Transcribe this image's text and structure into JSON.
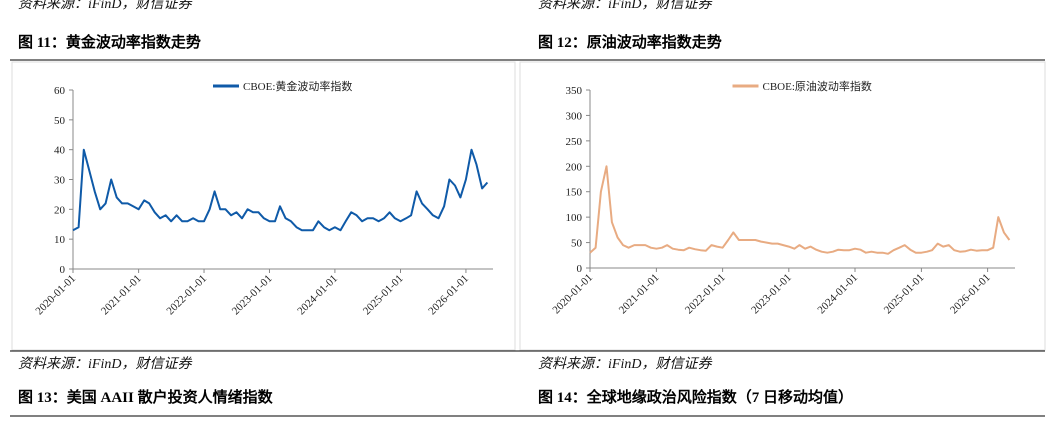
{
  "captions": {
    "top_sources": [
      "资料来源：iFinD，财信证券",
      "资料来源：iFinD，财信证券"
    ],
    "top_titles": [
      "图 11：黄金波动率指数走势",
      "图 12：原油波动率指数走势"
    ],
    "bottom_sources": [
      "资料来源：iFinD，财信证券",
      "资料来源：iFinD，财信证券"
    ],
    "bottom_titles": [
      "图 13：美国 AAII 散户投资人情绪指数",
      "图 14：全球地缘政治风险指数（7 日移动均值）"
    ]
  },
  "chart_data": [
    {
      "type": "line",
      "x": [
        "2020-01-01",
        "2020-02-01",
        "2020-03-01",
        "2020-04-01",
        "2020-05-01",
        "2020-06-01",
        "2020-07-01",
        "2020-08-01",
        "2020-09-01",
        "2020-10-01",
        "2020-11-01",
        "2020-12-01",
        "2021-01-01",
        "2021-02-01",
        "2021-03-01",
        "2021-04-01",
        "2021-05-01",
        "2021-06-01",
        "2021-07-01",
        "2021-08-01",
        "2021-09-01",
        "2021-10-01",
        "2021-11-01",
        "2021-12-01",
        "2022-01-01",
        "2022-02-01",
        "2022-03-01",
        "2022-04-01",
        "2022-05-01",
        "2022-06-01",
        "2022-07-01",
        "2022-08-01",
        "2022-09-01",
        "2022-10-01",
        "2022-11-01",
        "2022-12-01",
        "2023-01-01",
        "2023-02-01",
        "2023-03-01",
        "2023-04-01",
        "2023-05-01",
        "2023-06-01",
        "2023-07-01",
        "2023-08-01",
        "2023-09-01",
        "2023-10-01",
        "2023-11-01",
        "2023-12-01",
        "2024-01-01",
        "2024-02-01",
        "2024-03-01",
        "2024-04-01",
        "2024-05-01",
        "2024-06-01",
        "2024-07-01",
        "2024-08-01",
        "2024-09-01",
        "2024-10-01",
        "2024-11-01",
        "2024-12-01",
        "2025-01-01",
        "2025-02-01",
        "2025-03-01",
        "2025-04-01",
        "2025-05-01",
        "2025-06-01",
        "2025-07-01",
        "2025-08-01",
        "2025-09-01",
        "2025-10-01",
        "2025-11-01",
        "2025-12-01",
        "2026-01-01",
        "2026-02-01",
        "2026-03-01",
        "2026-04-01",
        "2026-05-01"
      ],
      "series": [
        {
          "name": "CBOE:黄金波动率指数",
          "color": "#0f5aa8",
          "values": [
            13,
            14,
            40,
            33,
            26,
            20,
            22,
            30,
            24,
            22,
            22,
            21,
            20,
            23,
            22,
            19,
            17,
            18,
            16,
            18,
            16,
            16,
            17,
            16,
            16,
            20,
            26,
            20,
            20,
            18,
            19,
            17,
            20,
            19,
            19,
            17,
            16,
            16,
            21,
            17,
            16,
            14,
            13,
            13,
            13,
            16,
            14,
            13,
            14,
            13,
            16,
            19,
            18,
            16,
            17,
            17,
            16,
            17,
            19,
            17,
            16,
            17,
            18,
            26,
            22,
            20,
            18,
            17,
            21,
            30,
            28,
            24,
            30,
            40,
            35,
            27,
            29
          ]
        }
      ],
      "xlim": [
        "2020-01-01",
        "2026-06-01"
      ],
      "xticks": [
        "2020-01-01",
        "2021-01-01",
        "2022-01-01",
        "2023-01-01",
        "2024-01-01",
        "2025-01-01",
        "2026-01-01"
      ],
      "ylim": [
        0,
        60
      ],
      "yticks": [
        0,
        10,
        20,
        30,
        40,
        50,
        60
      ],
      "legend": "top"
    },
    {
      "type": "line",
      "x": [
        "2020-01-01",
        "2020-02-01",
        "2020-03-01",
        "2020-04-01",
        "2020-05-01",
        "2020-06-01",
        "2020-07-01",
        "2020-08-01",
        "2020-09-01",
        "2020-10-01",
        "2020-11-01",
        "2020-12-01",
        "2021-01-01",
        "2021-02-01",
        "2021-03-01",
        "2021-04-01",
        "2021-05-01",
        "2021-06-01",
        "2021-07-01",
        "2021-08-01",
        "2021-09-01",
        "2021-10-01",
        "2021-11-01",
        "2021-12-01",
        "2022-01-01",
        "2022-02-01",
        "2022-03-01",
        "2022-04-01",
        "2022-05-01",
        "2022-06-01",
        "2022-07-01",
        "2022-08-01",
        "2022-09-01",
        "2022-10-01",
        "2022-11-01",
        "2022-12-01",
        "2023-01-01",
        "2023-02-01",
        "2023-03-01",
        "2023-04-01",
        "2023-05-01",
        "2023-06-01",
        "2023-07-01",
        "2023-08-01",
        "2023-09-01",
        "2023-10-01",
        "2023-11-01",
        "2023-12-01",
        "2024-01-01",
        "2024-02-01",
        "2024-03-01",
        "2024-04-01",
        "2024-05-01",
        "2024-06-01",
        "2024-07-01",
        "2024-08-01",
        "2024-09-01",
        "2024-10-01",
        "2024-11-01",
        "2024-12-01",
        "2025-01-01",
        "2025-02-01",
        "2025-03-01",
        "2025-04-01",
        "2025-05-01",
        "2025-06-01",
        "2025-07-01",
        "2025-08-01",
        "2025-09-01",
        "2025-10-01",
        "2025-11-01",
        "2025-12-01",
        "2026-01-01",
        "2026-02-01",
        "2026-03-01",
        "2026-04-01",
        "2026-05-01"
      ],
      "series": [
        {
          "name": "CBOE:原油波动率指数",
          "color": "#e8ab82",
          "values": [
            30,
            40,
            150,
            200,
            90,
            60,
            45,
            40,
            45,
            45,
            45,
            40,
            38,
            40,
            45,
            38,
            36,
            35,
            40,
            37,
            35,
            34,
            45,
            42,
            40,
            55,
            70,
            55,
            55,
            55,
            55,
            52,
            50,
            48,
            48,
            45,
            42,
            38,
            45,
            38,
            42,
            36,
            32,
            30,
            32,
            36,
            35,
            35,
            38,
            36,
            30,
            32,
            30,
            30,
            28,
            35,
            40,
            45,
            36,
            30,
            30,
            32,
            35,
            48,
            42,
            45,
            35,
            32,
            33,
            36,
            34,
            35,
            35,
            40,
            100,
            70,
            55
          ]
        }
      ],
      "xlim": [
        "2020-01-01",
        "2026-06-01"
      ],
      "xticks": [
        "2020-01-01",
        "2021-01-01",
        "2022-01-01",
        "2023-01-01",
        "2024-01-01",
        "2025-01-01",
        "2026-01-01"
      ],
      "ylim": [
        0,
        350
      ],
      "yticks": [
        0,
        50,
        100,
        150,
        200,
        250,
        300,
        350
      ],
      "legend": "top"
    }
  ]
}
